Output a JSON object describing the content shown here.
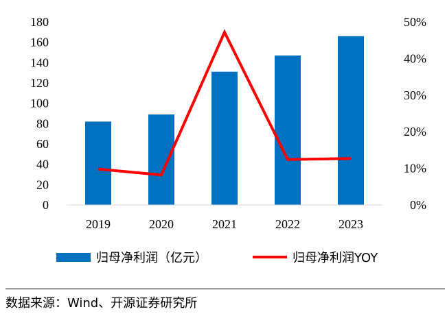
{
  "chart_data": {
    "type": "bar+line",
    "categories": [
      "2019",
      "2020",
      "2021",
      "2022",
      "2023"
    ],
    "series": [
      {
        "name": "归母净利润（亿元）",
        "type": "bar",
        "axis": "left",
        "color": "#0070c0",
        "values": [
          82,
          89,
          131,
          147,
          166
        ]
      },
      {
        "name": "归母净利润YOY",
        "type": "line",
        "axis": "right",
        "color": "#ff0000",
        "values": [
          9.8,
          8.2,
          47.2,
          12.4,
          12.7
        ]
      }
    ],
    "y_left": {
      "min": 0,
      "max": 180,
      "ticks": [
        "0",
        "20",
        "40",
        "60",
        "80",
        "100",
        "120",
        "140",
        "160",
        "180"
      ]
    },
    "y_right": {
      "min": 0,
      "max": 50,
      "ticks": [
        "0%",
        "10%",
        "20%",
        "30%",
        "40%",
        "50%"
      ]
    },
    "legend_position": "bottom"
  },
  "legend": {
    "bar_label": "归母净利润（亿元）",
    "line_label": "归母净利润YOY"
  },
  "source": "数据来源：Wind、开源证券研究所"
}
